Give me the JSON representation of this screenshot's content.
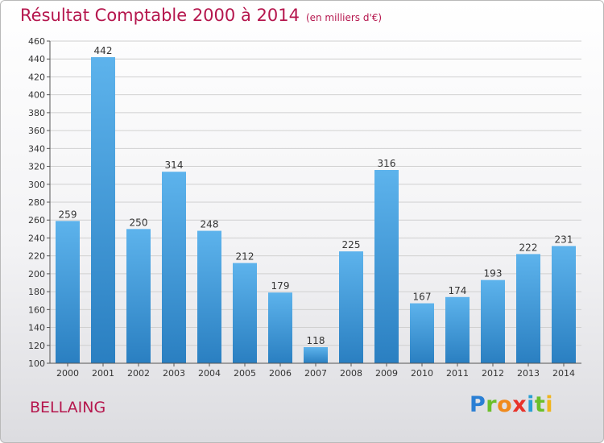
{
  "title": "Résultat Comptable 2000 à 2014",
  "unit_note": "(en milliers d'€)",
  "city": "BELLAING",
  "logo": {
    "letters": [
      "P",
      "r",
      "o",
      "x",
      "i",
      "t",
      "i"
    ],
    "colors": [
      "#2a7fd4",
      "#6bbf2a",
      "#f08a1c",
      "#e8322a",
      "#2a9fd4",
      "#6bbf2a",
      "#f0b41c"
    ]
  },
  "colors": {
    "title": "#b5164d",
    "bar_top": "#5db3ec",
    "bar_bottom": "#2a7fc1",
    "grid": "#d0d0d0",
    "axis": "#555555"
  },
  "chart_data": {
    "type": "bar",
    "title": "Résultat Comptable 2000 à 2014",
    "xlabel": "",
    "ylabel": "",
    "ylim": [
      100,
      460
    ],
    "yticks": [
      100,
      120,
      140,
      160,
      180,
      200,
      220,
      240,
      260,
      280,
      300,
      320,
      340,
      360,
      380,
      400,
      420,
      440,
      460
    ],
    "grid": true,
    "categories": [
      "2000",
      "2001",
      "2002",
      "2003",
      "2004",
      "2005",
      "2006",
      "2007",
      "2008",
      "2009",
      "2010",
      "2011",
      "2012",
      "2013",
      "2014"
    ],
    "values": [
      259,
      442,
      250,
      314,
      248,
      212,
      179,
      118,
      225,
      316,
      167,
      174,
      193,
      222,
      231
    ]
  }
}
